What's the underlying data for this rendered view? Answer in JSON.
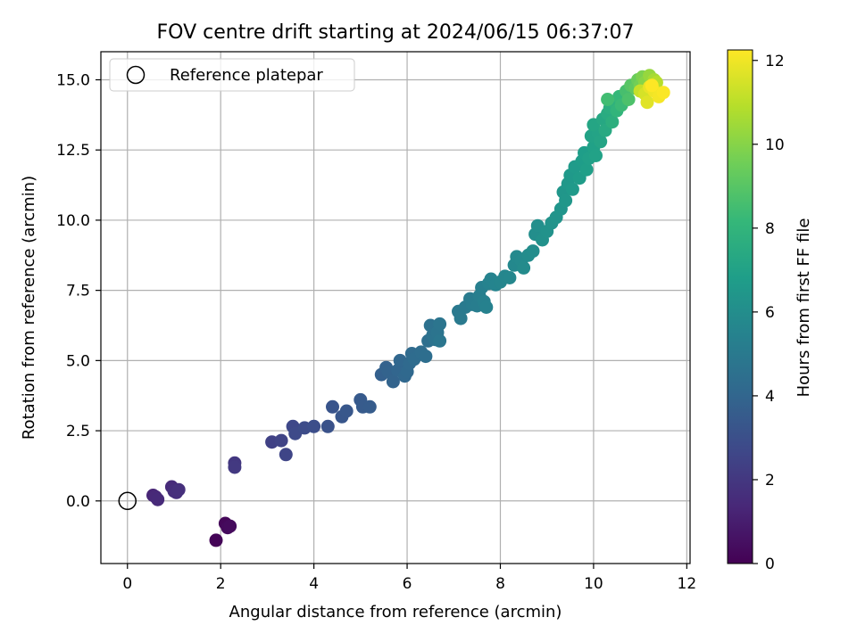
{
  "chart_data": {
    "type": "scatter",
    "title": "FOV centre drift starting at 2024/06/15 06:37:07",
    "xlabel": "Angular distance from reference (arcmin)",
    "ylabel": "Rotation from reference (arcmin)",
    "xlim": [
      -0.57,
      12.07
    ],
    "ylim": [
      -2.23,
      16.0
    ],
    "xticks": [
      0,
      2,
      4,
      6,
      8,
      10,
      12
    ],
    "xtick_labels": [
      "0",
      "2",
      "4",
      "6",
      "8",
      "10",
      "12"
    ],
    "yticks": [
      0.0,
      2.5,
      5.0,
      7.5,
      10.0,
      12.5,
      15.0
    ],
    "ytick_labels": [
      "0.0",
      "2.5",
      "5.0",
      "7.5",
      "10.0",
      "12.5",
      "15.0"
    ],
    "grid": true,
    "legend": {
      "placement": "top-left",
      "entries": [
        "Reference platepar"
      ]
    },
    "reference_point": {
      "x": 0.0,
      "y": 0.0,
      "marker": "open-circle",
      "label": "Reference platepar"
    },
    "colorbar": {
      "label": "Hours from first FF file",
      "colormap": "viridis",
      "range": [
        0,
        12.25
      ],
      "ticks": [
        0,
        2,
        4,
        6,
        8,
        10,
        12
      ],
      "tick_labels": [
        "0",
        "2",
        "4",
        "6",
        "8",
        "10",
        "12"
      ]
    },
    "color_stops": [
      "#440154",
      "#482878",
      "#3e4989",
      "#31688e",
      "#26828e",
      "#1f9e89",
      "#35b779",
      "#6ece58",
      "#b5de2b",
      "#fde725"
    ],
    "series": [
      {
        "points": [
          [
            1.9,
            -1.4,
            0.1
          ],
          [
            2.1,
            -0.8,
            0.2
          ],
          [
            2.15,
            -0.95,
            0.3
          ],
          [
            2.2,
            -0.9,
            0.35
          ],
          [
            0.55,
            0.2,
            1.3
          ],
          [
            0.6,
            0.15,
            1.4
          ],
          [
            0.65,
            0.05,
            1.45
          ],
          [
            0.95,
            0.5,
            1.5
          ],
          [
            1.0,
            0.35,
            1.6
          ],
          [
            1.05,
            0.3,
            1.65
          ],
          [
            1.1,
            0.4,
            1.7
          ],
          [
            2.3,
            1.35,
            2.0
          ],
          [
            2.3,
            1.2,
            2.05
          ],
          [
            3.1,
            2.1,
            2.4
          ],
          [
            3.3,
            2.15,
            2.5
          ],
          [
            3.4,
            1.65,
            2.55
          ],
          [
            3.55,
            2.65,
            2.7
          ],
          [
            3.6,
            2.4,
            2.75
          ],
          [
            3.8,
            2.6,
            2.85
          ],
          [
            4.0,
            2.65,
            2.95
          ],
          [
            4.3,
            2.65,
            3.1
          ],
          [
            4.4,
            3.35,
            3.2
          ],
          [
            4.6,
            3.0,
            3.3
          ],
          [
            4.7,
            3.2,
            3.35
          ],
          [
            5.0,
            3.6,
            3.45
          ],
          [
            5.05,
            3.35,
            3.5
          ],
          [
            5.2,
            3.35,
            3.55
          ],
          [
            5.45,
            4.5,
            3.75
          ],
          [
            5.55,
            4.75,
            3.8
          ],
          [
            5.6,
            4.6,
            3.85
          ],
          [
            5.7,
            4.25,
            3.9
          ],
          [
            5.8,
            4.65,
            4.0
          ],
          [
            5.85,
            5.0,
            4.05
          ],
          [
            5.95,
            4.45,
            4.1
          ],
          [
            6.0,
            4.6,
            4.15
          ],
          [
            6.05,
            4.9,
            4.2
          ],
          [
            6.1,
            5.25,
            4.25
          ],
          [
            6.15,
            5.05,
            4.3
          ],
          [
            6.3,
            5.3,
            4.35
          ],
          [
            6.4,
            5.15,
            4.4
          ],
          [
            6.45,
            5.7,
            4.45
          ],
          [
            6.5,
            6.25,
            4.55
          ],
          [
            6.55,
            5.9,
            4.6
          ],
          [
            6.6,
            5.75,
            4.65
          ],
          [
            6.65,
            6.0,
            4.7
          ],
          [
            6.7,
            6.3,
            4.75
          ],
          [
            6.7,
            5.7,
            4.8
          ],
          [
            7.1,
            6.75,
            4.95
          ],
          [
            7.15,
            6.5,
            5.0
          ],
          [
            7.25,
            6.9,
            5.05
          ],
          [
            7.35,
            7.2,
            5.1
          ],
          [
            7.4,
            7.0,
            5.15
          ],
          [
            7.5,
            6.95,
            5.2
          ],
          [
            7.55,
            7.3,
            5.25
          ],
          [
            7.6,
            7.6,
            5.3
          ],
          [
            7.65,
            7.1,
            5.35
          ],
          [
            7.7,
            6.9,
            5.4
          ],
          [
            7.75,
            7.75,
            5.45
          ],
          [
            7.8,
            7.9,
            5.5
          ],
          [
            7.9,
            7.7,
            5.55
          ],
          [
            8.0,
            7.8,
            5.6
          ],
          [
            8.1,
            8.0,
            5.65
          ],
          [
            8.2,
            7.95,
            5.7
          ],
          [
            8.3,
            8.4,
            5.75
          ],
          [
            8.35,
            8.7,
            5.8
          ],
          [
            8.45,
            8.55,
            5.85
          ],
          [
            8.5,
            8.3,
            5.9
          ],
          [
            8.6,
            8.75,
            5.95
          ],
          [
            8.7,
            8.9,
            6.0
          ],
          [
            8.75,
            9.5,
            6.05
          ],
          [
            8.8,
            9.8,
            6.1
          ],
          [
            8.9,
            9.3,
            6.15
          ],
          [
            9.0,
            9.6,
            6.2
          ],
          [
            9.1,
            9.9,
            6.25
          ],
          [
            9.2,
            10.1,
            6.3
          ],
          [
            9.3,
            10.4,
            6.35
          ],
          [
            9.35,
            11.0,
            6.4
          ],
          [
            9.4,
            10.7,
            6.45
          ],
          [
            9.45,
            11.3,
            6.5
          ],
          [
            9.5,
            11.6,
            6.55
          ],
          [
            9.55,
            11.1,
            6.6
          ],
          [
            9.6,
            11.9,
            6.65
          ],
          [
            9.7,
            11.5,
            6.7
          ],
          [
            9.75,
            12.1,
            6.75
          ],
          [
            9.8,
            12.4,
            6.8
          ],
          [
            9.85,
            11.8,
            6.85
          ],
          [
            9.9,
            12.2,
            6.9
          ],
          [
            10.0,
            12.6,
            6.95
          ],
          [
            10.05,
            12.3,
            7.0
          ],
          [
            9.95,
            13.0,
            7.05
          ],
          [
            10.1,
            13.1,
            7.1
          ],
          [
            10.15,
            12.8,
            7.15
          ],
          [
            10.0,
            13.4,
            7.2
          ],
          [
            10.2,
            13.6,
            7.3
          ],
          [
            10.25,
            13.2,
            7.4
          ],
          [
            10.3,
            13.8,
            7.5
          ],
          [
            10.35,
            14.0,
            7.6
          ],
          [
            10.4,
            13.5,
            7.7
          ],
          [
            10.45,
            14.2,
            7.85
          ],
          [
            10.5,
            13.9,
            8.0
          ],
          [
            10.55,
            14.4,
            8.15
          ],
          [
            10.6,
            14.1,
            8.3
          ],
          [
            10.3,
            14.3,
            8.45
          ],
          [
            10.7,
            14.6,
            8.6
          ],
          [
            10.75,
            14.3,
            8.75
          ],
          [
            10.8,
            14.8,
            9.0
          ],
          [
            10.9,
            14.7,
            9.2
          ],
          [
            10.95,
            15.0,
            9.4
          ],
          [
            11.0,
            14.8,
            9.6
          ],
          [
            11.05,
            15.1,
            9.8
          ],
          [
            11.1,
            14.9,
            10.0
          ],
          [
            11.2,
            15.15,
            10.3
          ],
          [
            11.3,
            15.0,
            10.6
          ],
          [
            11.35,
            14.9,
            10.9
          ],
          [
            11.0,
            14.6,
            11.2
          ],
          [
            11.1,
            14.5,
            11.5
          ],
          [
            11.15,
            14.2,
            11.7
          ],
          [
            11.2,
            14.75,
            11.85
          ],
          [
            11.3,
            14.6,
            12.0
          ],
          [
            11.4,
            14.4,
            12.1
          ],
          [
            11.5,
            14.55,
            12.2
          ],
          [
            11.25,
            14.8,
            12.25
          ]
        ]
      }
    ]
  }
}
